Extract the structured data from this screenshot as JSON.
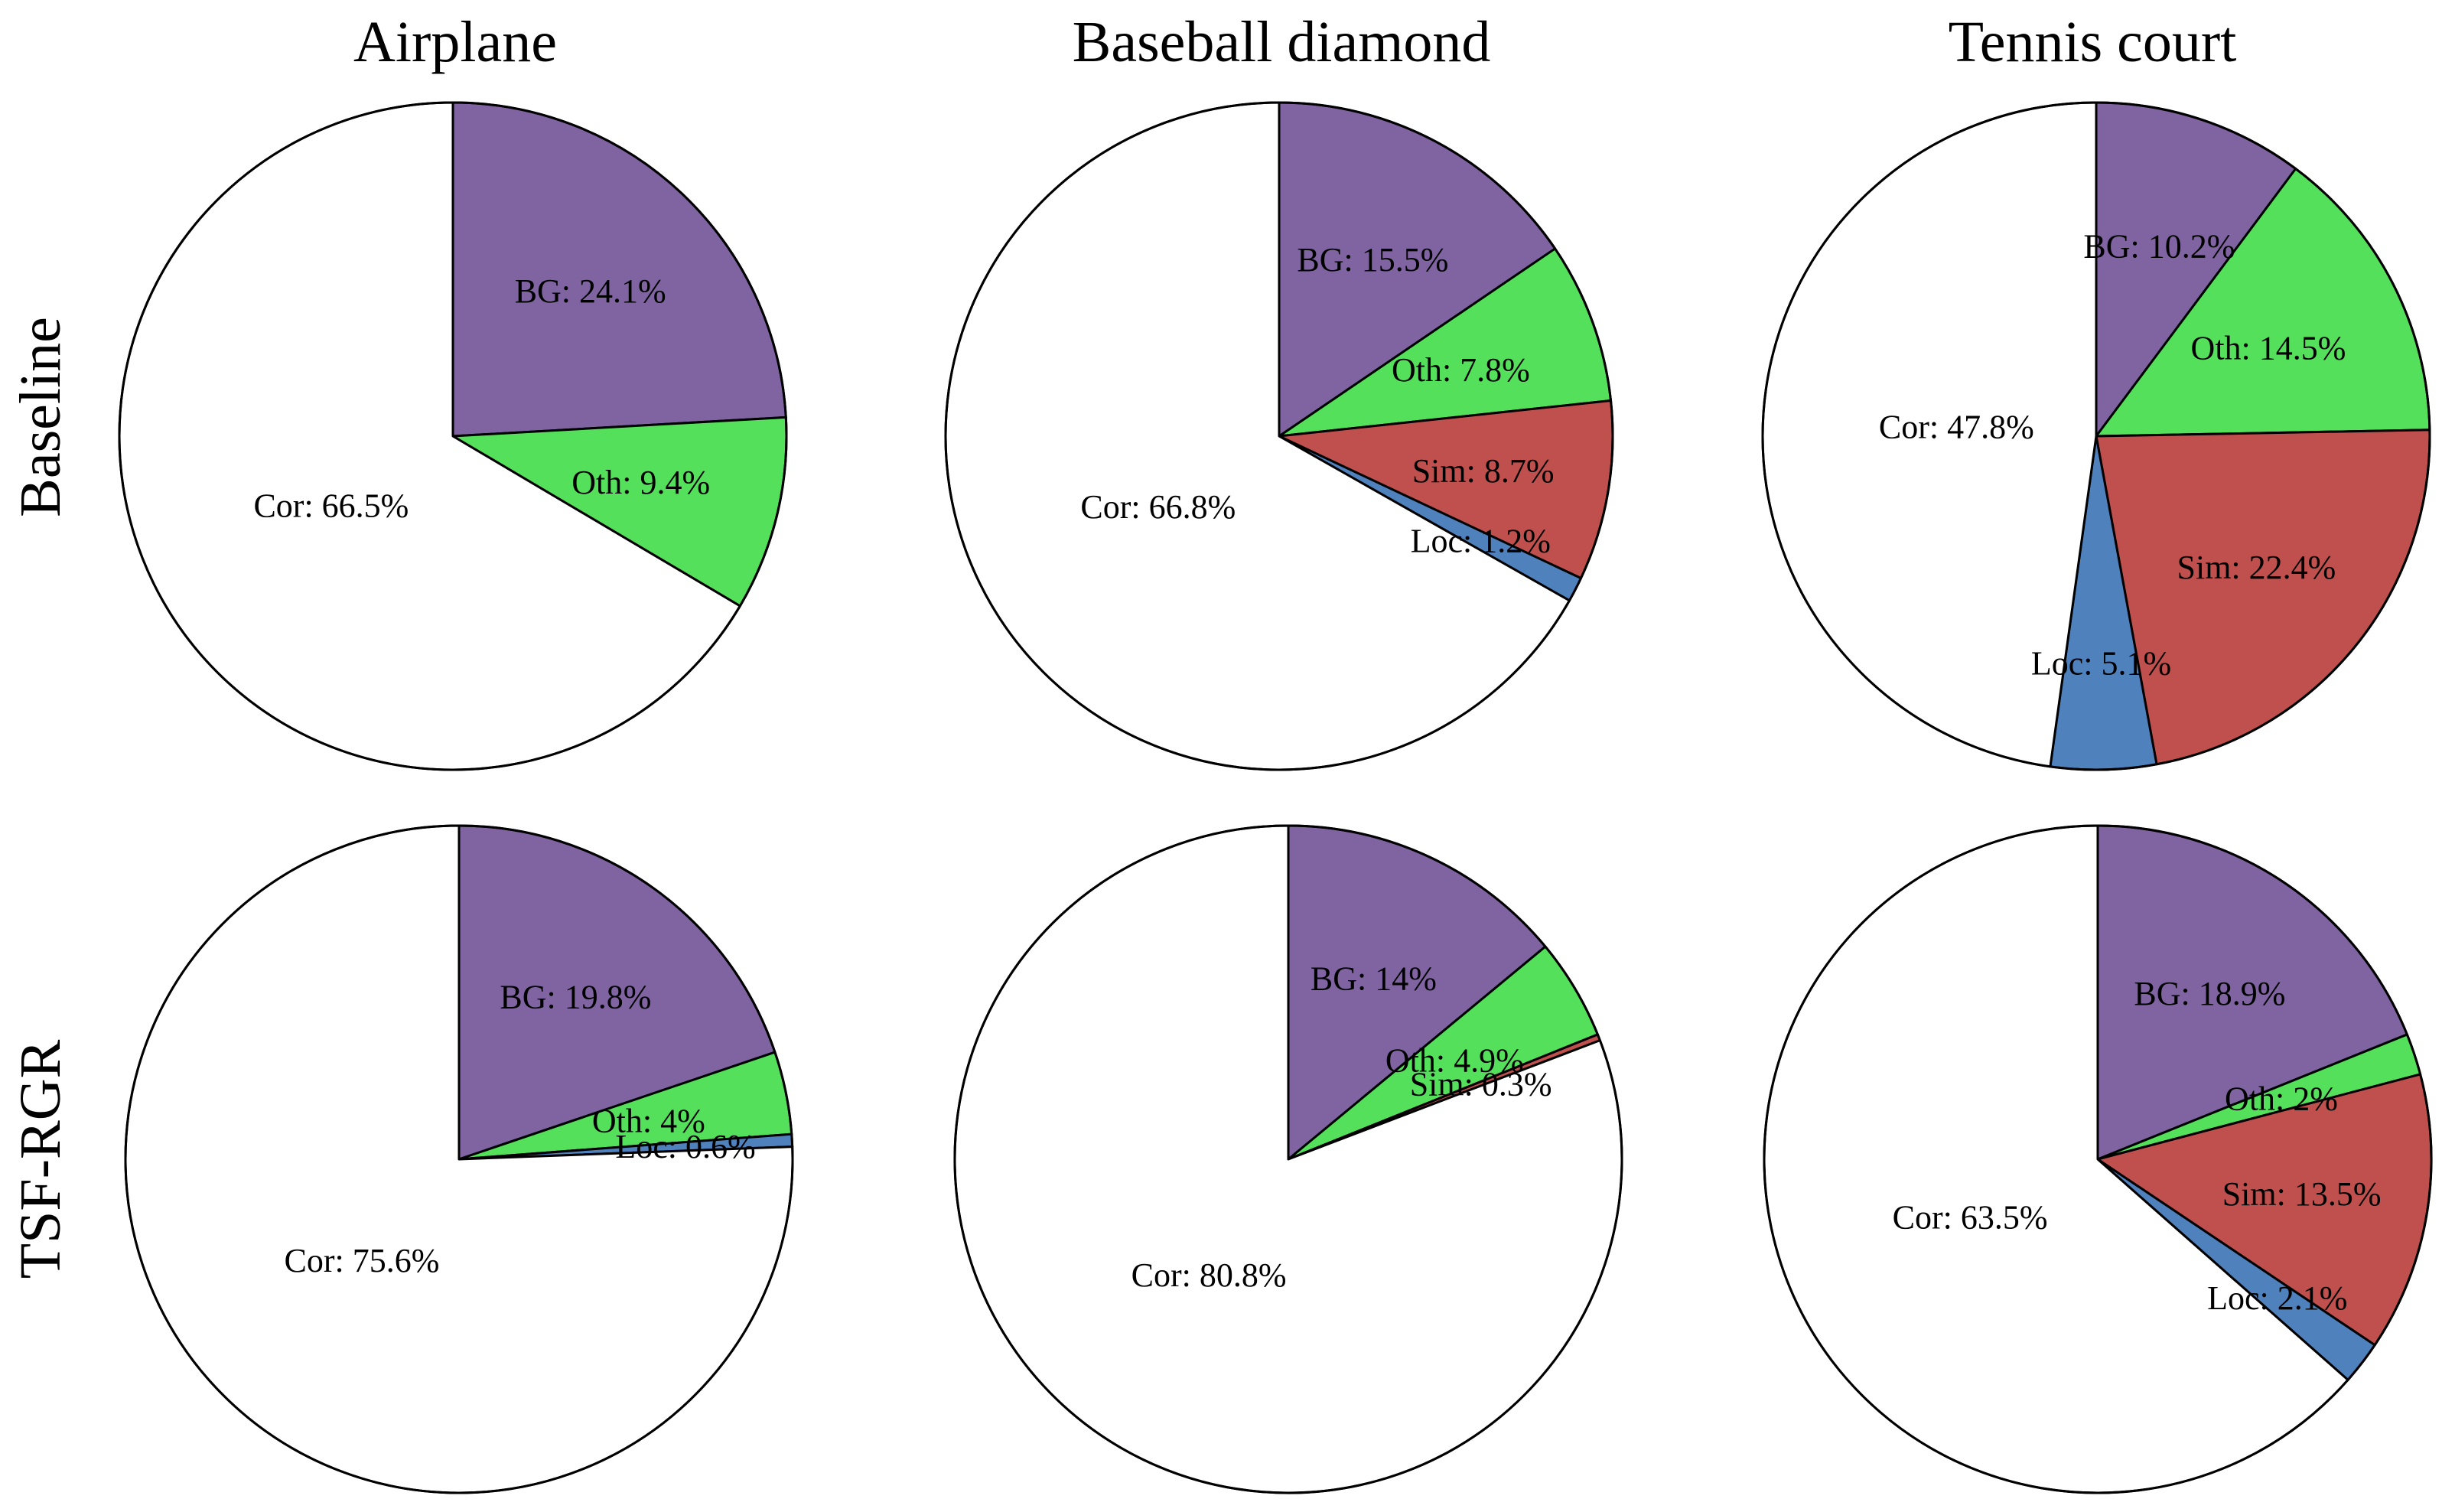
{
  "figure": {
    "columns": [
      "Airplane",
      "Baseball diamond",
      "Tennis court"
    ],
    "rows": [
      "Baseline",
      "TSF-RGR"
    ]
  },
  "colors": {
    "BG": "#8064a2",
    "Oth": "#55e05c",
    "Sim": "#c0504d",
    "Loc": "#4f81bd",
    "Cor": "#ffffff"
  },
  "chart_data": [
    {
      "type": "pie",
      "title": "Airplane",
      "row": "Baseline",
      "slices": [
        {
          "key": "BG",
          "value": 24.1,
          "label": "BG: 24.1%"
        },
        {
          "key": "Oth",
          "value": 9.4,
          "label": "Oth: 9.4%"
        },
        {
          "key": "Sim",
          "value": 0.0,
          "label": ""
        },
        {
          "key": "Loc",
          "value": 0.0,
          "label": ""
        },
        {
          "key": "Cor",
          "value": 66.5,
          "label": "Cor: 66.5%"
        }
      ]
    },
    {
      "type": "pie",
      "title": "Baseball diamond",
      "row": "Baseline",
      "slices": [
        {
          "key": "BG",
          "value": 15.5,
          "label": "BG: 15.5%"
        },
        {
          "key": "Oth",
          "value": 7.8,
          "label": "Oth: 7.8%"
        },
        {
          "key": "Sim",
          "value": 8.7,
          "label": "Sim: 8.7%"
        },
        {
          "key": "Loc",
          "value": 1.2,
          "label": "Loc: 1.2%"
        },
        {
          "key": "Cor",
          "value": 66.8,
          "label": "Cor: 66.8%"
        }
      ]
    },
    {
      "type": "pie",
      "title": "Tennis court",
      "row": "Baseline",
      "slices": [
        {
          "key": "BG",
          "value": 10.2,
          "label": "BG: 10.2%"
        },
        {
          "key": "Oth",
          "value": 14.5,
          "label": "Oth: 14.5%"
        },
        {
          "key": "Sim",
          "value": 22.4,
          "label": "Sim: 22.4%"
        },
        {
          "key": "Loc",
          "value": 5.1,
          "label": "Loc: 5.1%"
        },
        {
          "key": "Cor",
          "value": 47.8,
          "label": "Cor: 47.8%"
        }
      ]
    },
    {
      "type": "pie",
      "title": "Airplane",
      "row": "TSF-RGR",
      "slices": [
        {
          "key": "BG",
          "value": 19.8,
          "label": "BG: 19.8%"
        },
        {
          "key": "Oth",
          "value": 4.0,
          "label": "Oth: 4%"
        },
        {
          "key": "Sim",
          "value": 0.0,
          "label": ""
        },
        {
          "key": "Loc",
          "value": 0.6,
          "label": "Loc: 0.6%"
        },
        {
          "key": "Cor",
          "value": 75.6,
          "label": "Cor: 75.6%"
        }
      ]
    },
    {
      "type": "pie",
      "title": "Baseball diamond",
      "row": "TSF-RGR",
      "slices": [
        {
          "key": "BG",
          "value": 14.0,
          "label": "BG: 14%"
        },
        {
          "key": "Oth",
          "value": 4.9,
          "label": "Oth: 4.9%"
        },
        {
          "key": "Sim",
          "value": 0.3,
          "label": "Sim: 0.3%"
        },
        {
          "key": "Loc",
          "value": 0.0,
          "label": ""
        },
        {
          "key": "Cor",
          "value": 80.8,
          "label": "Cor: 80.8%"
        }
      ]
    },
    {
      "type": "pie",
      "title": "Tennis court",
      "row": "TSF-RGR",
      "slices": [
        {
          "key": "BG",
          "value": 18.9,
          "label": "BG: 18.9%"
        },
        {
          "key": "Oth",
          "value": 2.0,
          "label": "Oth: 2%"
        },
        {
          "key": "Sim",
          "value": 13.5,
          "label": "Sim: 13.5%"
        },
        {
          "key": "Loc",
          "value": 2.1,
          "label": "Loc: 2.1%"
        },
        {
          "key": "Cor",
          "value": 63.5,
          "label": "Cor: 63.5%"
        }
      ]
    }
  ]
}
